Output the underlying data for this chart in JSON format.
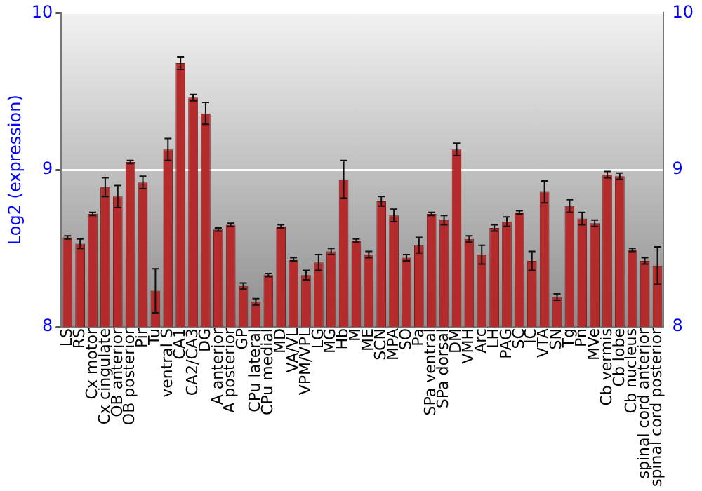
{
  "chart_data": {
    "type": "bar",
    "ylabel": "Log2 (expression)",
    "categories": [
      "LS",
      "RS",
      "Cx motor",
      "Cx cingulate",
      "OB anterior",
      "OB posterior",
      "Pir",
      "Tu",
      "ventral S",
      "CA1",
      "CA2/CA3",
      "DG",
      "A anterior",
      "A posterior",
      "GP",
      "CPu lateral",
      "CPu medial",
      "MD",
      "VA/VL",
      "VPM/VPL",
      "LG",
      "MG",
      "Hb",
      "M",
      "ME",
      "SCN",
      "MPA",
      "SO",
      "Pa",
      "SPa ventral",
      "SPa dorsal",
      "DM",
      "VMH",
      "Arc",
      "LH",
      "PAG",
      "SC",
      "IC",
      "VTA",
      "SN",
      "Tg",
      "Pn",
      "MVe",
      "Cb vermis",
      "Cb lobe",
      "Cb nucleus",
      "spinal cord anterior",
      "spinal cord posterior"
    ],
    "values": [
      8.57,
      8.53,
      8.72,
      8.89,
      8.83,
      9.05,
      8.92,
      8.23,
      9.13,
      9.68,
      9.46,
      9.36,
      8.62,
      8.65,
      8.26,
      8.16,
      8.33,
      8.64,
      8.43,
      8.33,
      8.41,
      8.48,
      8.94,
      8.55,
      8.46,
      8.8,
      8.71,
      8.44,
      8.52,
      8.72,
      8.68,
      9.13,
      8.56,
      8.46,
      8.63,
      8.67,
      8.73,
      8.42,
      8.86,
      8.19,
      8.77,
      8.69,
      8.66,
      8.97,
      8.96,
      8.49,
      8.42,
      8.39
    ],
    "errors": [
      0.01,
      0.03,
      0.01,
      0.06,
      0.07,
      0.01,
      0.04,
      0.14,
      0.07,
      0.04,
      0.02,
      0.07,
      0.01,
      0.01,
      0.02,
      0.02,
      0.01,
      0.01,
      0.01,
      0.03,
      0.05,
      0.02,
      0.12,
      0.01,
      0.02,
      0.03,
      0.04,
      0.02,
      0.05,
      0.01,
      0.03,
      0.04,
      0.02,
      0.06,
      0.02,
      0.03,
      0.01,
      0.06,
      0.07,
      0.02,
      0.04,
      0.04,
      0.02,
      0.02,
      0.02,
      0.01,
      0.02,
      0.12
    ],
    "color": "#b52a2a",
    "ylim": [
      8,
      10
    ],
    "yticks": [
      8,
      9,
      10
    ],
    "y2lim": [
      8,
      10
    ],
    "y2ticks": [
      8,
      9,
      10
    ],
    "grid": "y",
    "legend": false
  }
}
